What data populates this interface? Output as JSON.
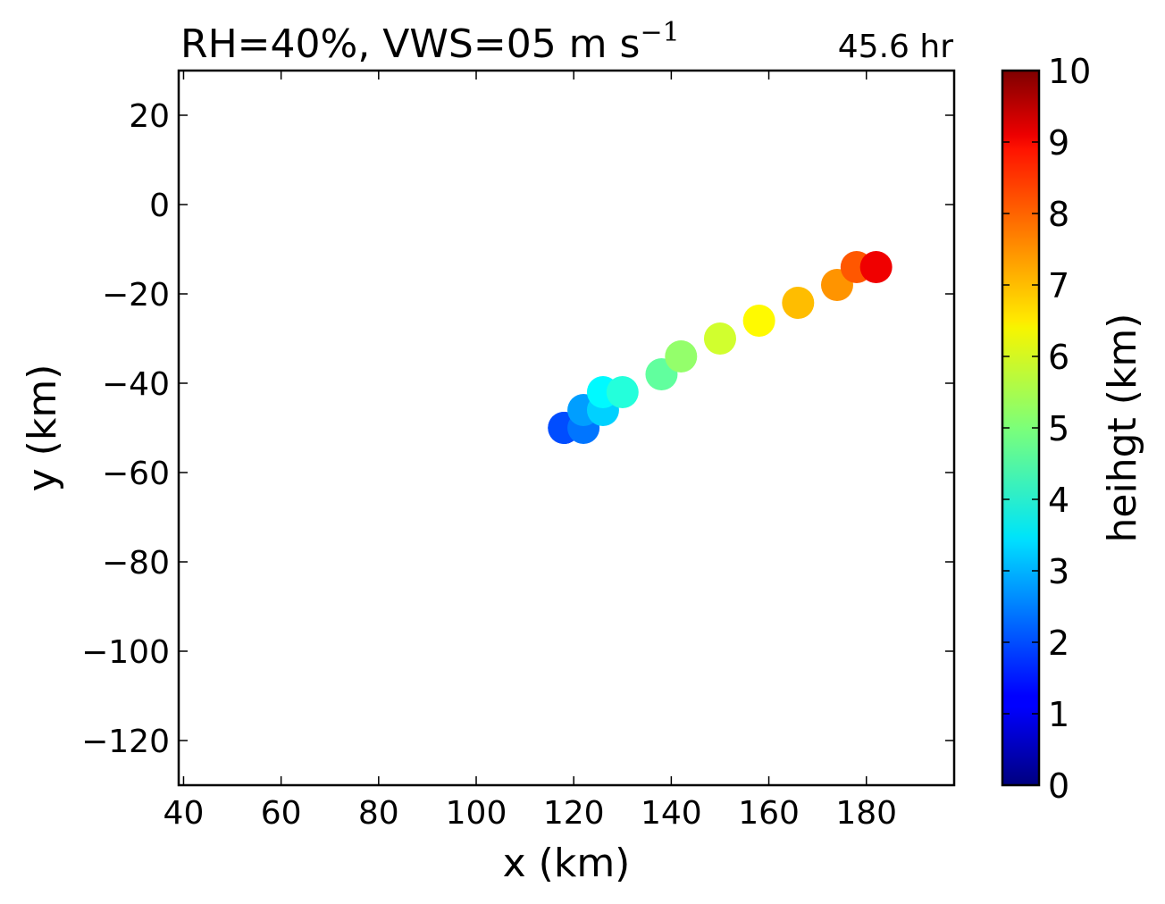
{
  "chart_data": {
    "type": "scatter",
    "title": "RH=40%, VWS=05 m s",
    "title_superscript": "−1",
    "time_label": "45.6 hr",
    "time_label_color": "#0000ff",
    "xlabel": "x (km)",
    "ylabel": "y (km)",
    "xlim": [
      39,
      198
    ],
    "ylim": [
      -130,
      30
    ],
    "xticks": [
      40,
      60,
      80,
      100,
      120,
      140,
      160,
      180
    ],
    "xtick_labels": [
      "40",
      "60",
      "80",
      "100",
      "120",
      "140",
      "160",
      "180"
    ],
    "yticks": [
      20,
      0,
      -20,
      -40,
      -60,
      -80,
      -100,
      -120
    ],
    "ytick_labels": [
      "20",
      "0",
      "−20",
      "−40",
      "−60",
      "−80",
      "−100",
      "−120"
    ],
    "grid": false,
    "colormap": "jet",
    "points": [
      {
        "x": 118,
        "y": -50,
        "height": 1.8
      },
      {
        "x": 118,
        "y": -50,
        "height": 2.0
      },
      {
        "x": 122,
        "y": -50,
        "height": 2.4
      },
      {
        "x": 122,
        "y": -46,
        "height": 2.8
      },
      {
        "x": 126,
        "y": -46,
        "height": 3.3
      },
      {
        "x": 126,
        "y": -42,
        "height": 3.7
      },
      {
        "x": 130,
        "y": -42,
        "height": 4.1
      },
      {
        "x": 138,
        "y": -38,
        "height": 4.7
      },
      {
        "x": 142,
        "y": -34,
        "height": 5.2
      },
      {
        "x": 150,
        "y": -30,
        "height": 5.8
      },
      {
        "x": 158,
        "y": -26,
        "height": 6.3
      },
      {
        "x": 166,
        "y": -22,
        "height": 6.9
      },
      {
        "x": 174,
        "y": -18,
        "height": 7.3
      },
      {
        "x": 178,
        "y": -14,
        "height": 7.9
      },
      {
        "x": 182,
        "y": -14,
        "height": 8.9
      }
    ],
    "colorbar": {
      "label": "heihgt (km)",
      "range": [
        0,
        10
      ],
      "ticks": [
        0,
        1,
        2,
        3,
        4,
        5,
        6,
        7,
        8,
        9,
        10
      ],
      "tick_labels": [
        "0",
        "1",
        "2",
        "3",
        "4",
        "5",
        "6",
        "7",
        "8",
        "9",
        "10"
      ]
    }
  }
}
